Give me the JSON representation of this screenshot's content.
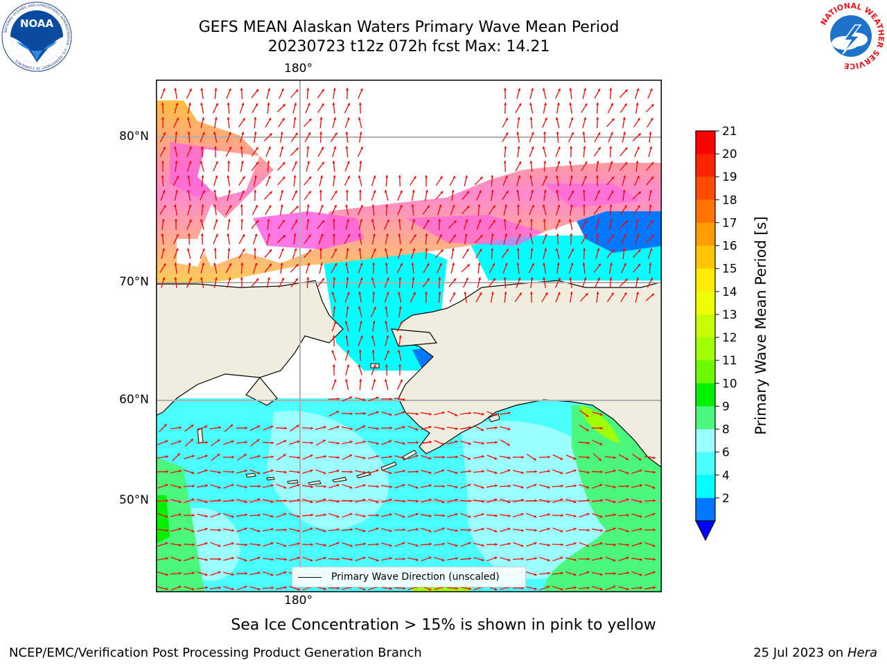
{
  "title": {
    "line1": "GEFS MEAN Alaskan Waters Primary Wave Mean Period",
    "line2": "20230723 t12z 072h fcst   Max: 14.21"
  },
  "map": {
    "lon_label_top": "180°",
    "lon_label_bottom": "180°",
    "lat_labels": [
      "80°N",
      "70°N",
      "60°N",
      "50°N"
    ],
    "legend_label": "Primary Wave Direction (unscaled)",
    "arrow_color": "#ff0000",
    "land_color": "#efedde",
    "grid_color": "#b0b0b0"
  },
  "colorbar": {
    "label": "Primary Wave Mean Period [s]",
    "ticks": [
      "21",
      "20",
      "19",
      "18",
      "17",
      "16",
      "15",
      "14",
      "13",
      "12",
      "11",
      "10",
      "9",
      "8",
      "6",
      "4",
      "2"
    ],
    "colors": [
      "#ff0000",
      "#ff2400",
      "#ff4c00",
      "#ff7400",
      "#ff9c00",
      "#ffc400",
      "#ffec00",
      "#f0ff00",
      "#c8ff00",
      "#a0ff00",
      "#6cf800",
      "#00f000",
      "#4cf87c",
      "#9cffff",
      "#4cffff",
      "#00ffff",
      "#0078ff"
    ],
    "under_color": "#0000ff"
  },
  "caption": "Sea Ice Concentration > 15% is shown in pink to yellow",
  "footer": {
    "left": "NCEP/EMC/Verification Post Processing Product Generation Branch",
    "date": "25 Jul 2023 on ",
    "machine": "Hera"
  },
  "logos": {
    "noaa": "NOAA",
    "noaa_ring": "NATIONAL OCEANIC AND ATMOSPHERIC ADMINISTRATION · U.S. DEPARTMENT OF COMMERCE",
    "nws_ring": "NATIONAL WEATHER SERVICE"
  }
}
